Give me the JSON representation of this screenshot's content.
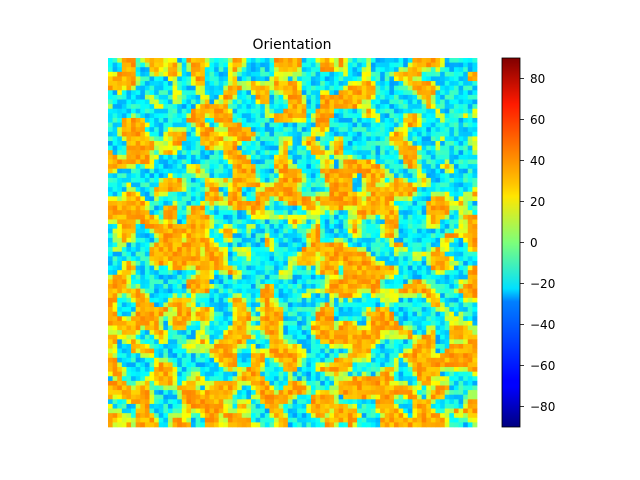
{
  "chart_data": {
    "type": "heatmap",
    "title": "Orientation",
    "xlabel": "",
    "ylabel": "",
    "axes_visible": false,
    "grid": false,
    "colormap": "jet",
    "value_range": [
      -90,
      90
    ],
    "colorbar": {
      "ticks": [
        -80,
        -60,
        -40,
        -20,
        0,
        20,
        40,
        60,
        80
      ],
      "tick_labels": [
        "−80",
        "−60",
        "−40",
        "−20",
        "0",
        "20",
        "40",
        "60",
        "80"
      ]
    },
    "grid_size": [
      80,
      80
    ],
    "value_distribution_note": "Mostly values between -40 and -10 (cyan/light blue), with scattered patches of 20-45 (yellow/orange), denser orange clusters toward the lower portion.",
    "colors": {
      "background": "#ffffff",
      "text": "#000000"
    }
  }
}
